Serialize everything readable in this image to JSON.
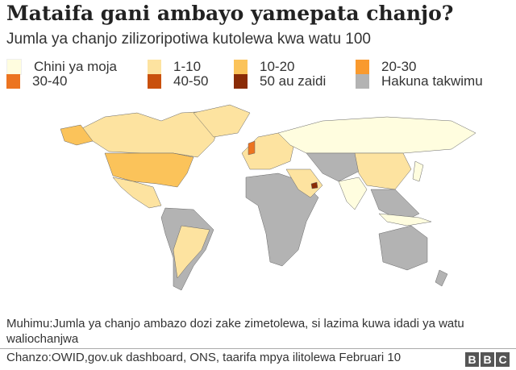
{
  "title": "Mataifa gani ambayo yamepata chanjo?",
  "subtitle": "Jumla ya chanjo zilizoripotiwa kutolewa kwa watu 100",
  "legend": [
    {
      "label": "Chini ya moja",
      "color": "#fffddf"
    },
    {
      "label": "1-10",
      "color": "#fde3a0"
    },
    {
      "label": "10-20",
      "color": "#fbc35a"
    },
    {
      "label": "20-30",
      "color": "#f99a2e"
    },
    {
      "label": "30-40",
      "color": "#ec7420"
    },
    {
      "label": "40-50",
      "color": "#c9500c"
    },
    {
      "label": "50 au zaidi",
      "color": "#8a2b06"
    },
    {
      "label": "Hakuna takwimu",
      "color": "#b3b3b3"
    }
  ],
  "note": "Muhimu:Jumla ya chanjo ambazo dozi zake zimetolewa, si lazima kuwa idadi ya watu waliochanjwa",
  "source": "Chanzo:OWID,gov.uk dashboard, ONS, taarifa mpya ilitolewa Februari 10",
  "logo": [
    "B",
    "B",
    "C"
  ]
}
